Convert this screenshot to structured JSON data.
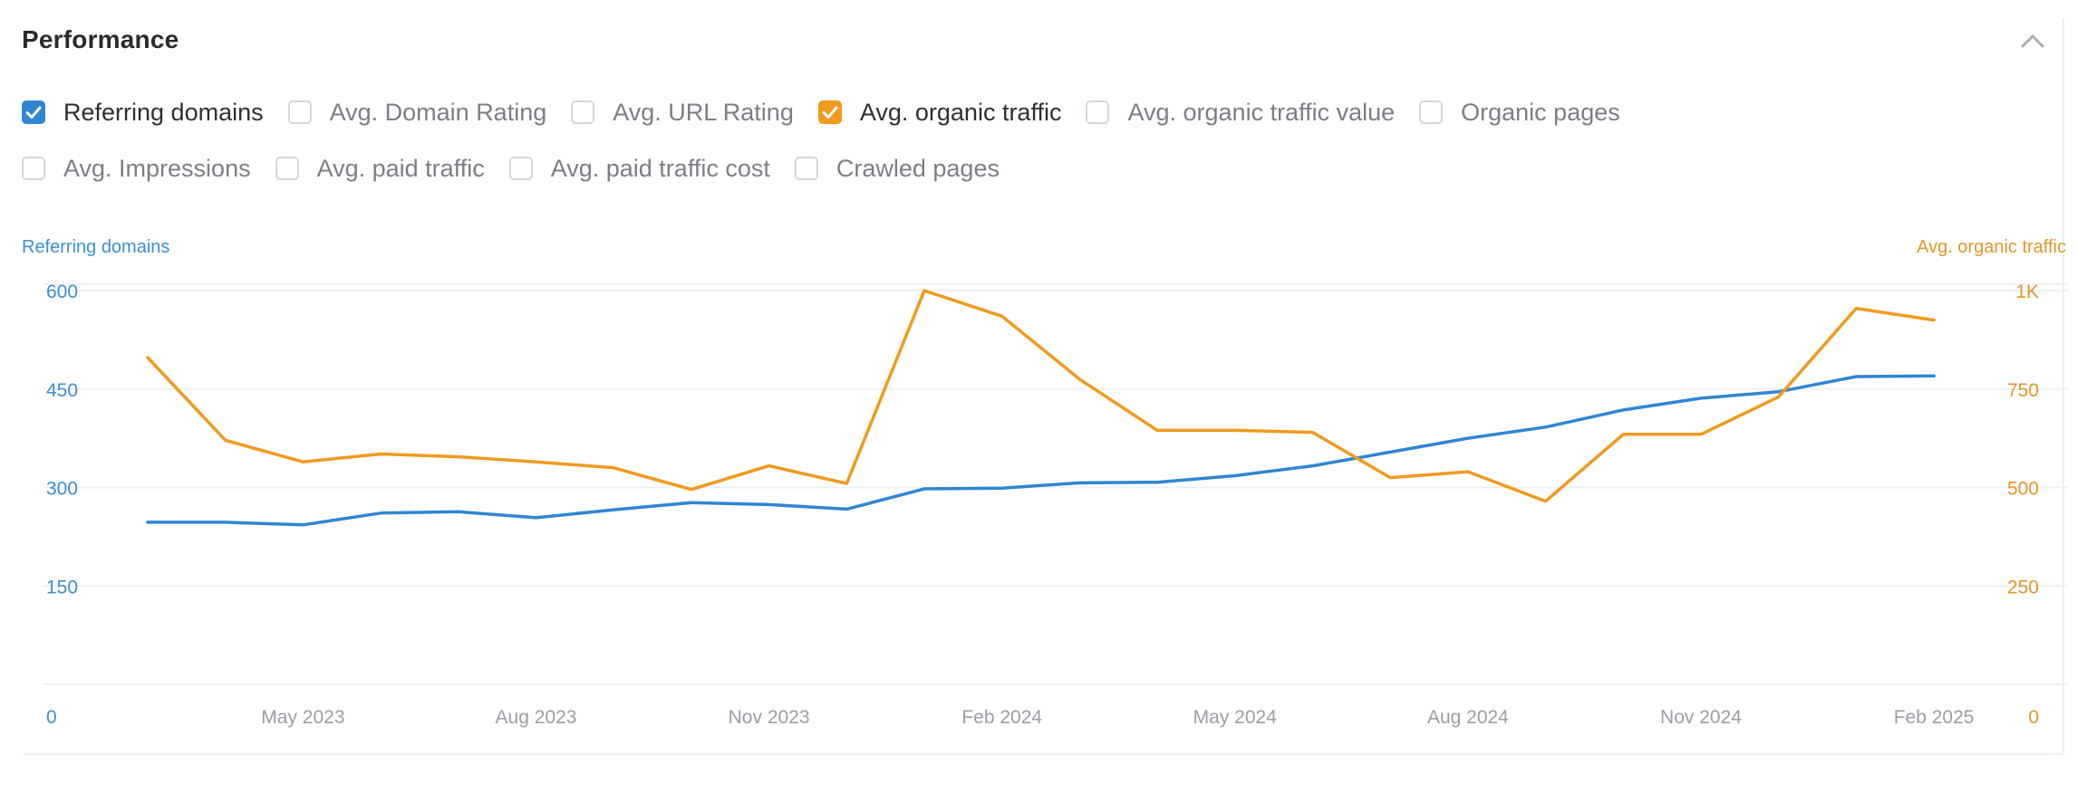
{
  "panel": {
    "title": "Performance",
    "collapse_icon": "chevron-up-icon"
  },
  "metrics_row1": [
    {
      "label": "Referring domains",
      "checked": true,
      "color": "#2f86d3"
    },
    {
      "label": "Avg. Domain Rating",
      "checked": false,
      "color": ""
    },
    {
      "label": "Avg. URL Rating",
      "checked": false,
      "color": ""
    },
    {
      "label": "Avg. organic traffic",
      "checked": true,
      "color": "#f09a1e"
    },
    {
      "label": "Avg. organic traffic value",
      "checked": false,
      "color": ""
    },
    {
      "label": "Organic pages",
      "checked": false,
      "color": ""
    }
  ],
  "metrics_row2": [
    {
      "label": "Avg. Impressions",
      "checked": false,
      "color": ""
    },
    {
      "label": "Avg. paid traffic",
      "checked": false,
      "color": ""
    },
    {
      "label": "Avg. paid traffic cost",
      "checked": false,
      "color": ""
    },
    {
      "label": "Crawled pages",
      "checked": false,
      "color": ""
    }
  ],
  "chart_data": {
    "type": "line",
    "left_axis_title": "Referring domains",
    "right_axis_title": "Avg. organic traffic",
    "x_tick_labels": [
      "May 2023",
      "Aug 2023",
      "Nov 2023",
      "Feb 2024",
      "May 2024",
      "Aug 2024",
      "Nov 2024",
      "Feb 2025"
    ],
    "y_left_ticks": [
      "0",
      "150",
      "300",
      "450",
      "600"
    ],
    "y_right_ticks": [
      "0",
      "250",
      "500",
      "750",
      "1K"
    ],
    "ylim_left": [
      0,
      600
    ],
    "ylim_right": [
      0,
      1000
    ],
    "grid": true,
    "x": [
      "Mar 2023",
      "Apr 2023",
      "May 2023",
      "Jun 2023",
      "Jul 2023",
      "Aug 2023",
      "Sep 2023",
      "Oct 2023",
      "Nov 2023",
      "Dec 2023",
      "Jan 2024",
      "Feb 2024",
      "Mar 2024",
      "Apr 2024",
      "May 2024",
      "Jun 2024",
      "Jul 2024",
      "Aug 2024",
      "Sep 2024",
      "Oct 2024",
      "Nov 2024",
      "Dec 2024",
      "Jan 2025",
      "Feb 2025"
    ],
    "series": [
      {
        "name": "Referring domains",
        "axis": "left",
        "color": "#2f86d3",
        "values": [
          247,
          247,
          243,
          261,
          263,
          254,
          266,
          277,
          274,
          267,
          298,
          299,
          307,
          308,
          318,
          333,
          354,
          375,
          392,
          418,
          436,
          446,
          469,
          470
        ]
      },
      {
        "name": "Avg. organic traffic",
        "axis": "right",
        "color": "#f09a1e",
        "values": [
          830,
          620,
          565,
          585,
          578,
          565,
          550,
          495,
          555,
          510,
          1000,
          935,
          775,
          645,
          645,
          640,
          525,
          540,
          465,
          635,
          635,
          730,
          955,
          925
        ]
      }
    ]
  }
}
